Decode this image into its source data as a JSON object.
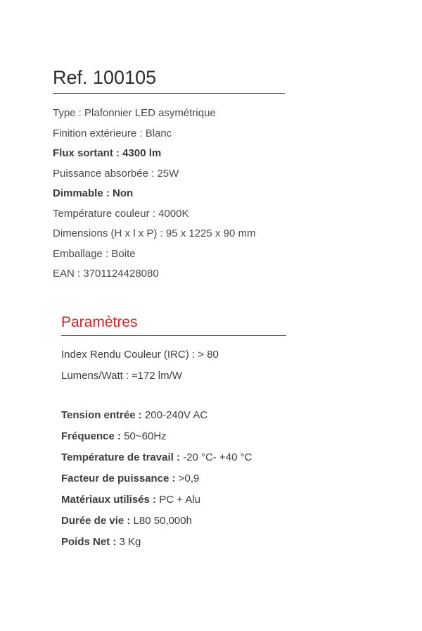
{
  "header": {
    "ref_label": "Ref. 100105"
  },
  "specs": [
    {
      "label": "Type : ",
      "value": "Plafonnier LED asymétrique",
      "bold": false
    },
    {
      "label": "Finition extérieure : ",
      "value": "Blanc",
      "bold": false
    },
    {
      "label": "Flux sortant : ",
      "value": "4300 lm",
      "bold": true
    },
    {
      "label": "Puissance absorbée : ",
      "value": "25W",
      "bold": false
    },
    {
      "label": "Dimmable : ",
      "value": "Non",
      "bold": true
    },
    {
      "label": "Température couleur : ",
      "value": "4000K",
      "bold": false
    },
    {
      "label": "Dimensions (H x l x P) : ",
      "value": "95 x 1225 x 90 mm",
      "bold": false
    },
    {
      "label": "Emballage : ",
      "value": "Boite",
      "bold": false
    },
    {
      "label": "EAN : ",
      "value": "3701124428080",
      "bold": false
    }
  ],
  "params_title": "Paramètres",
  "params_top": [
    {
      "label": "Index Rendu Couleur (IRC) : ",
      "value": "> 80"
    },
    {
      "label": "Lumens/Watt : ",
      "value": "≈172 lm/W"
    }
  ],
  "params_bottom": [
    {
      "label": "Tension entrée : ",
      "value": "200-240V AC"
    },
    {
      "label": "Fréquence : ",
      "value": "50~60Hz"
    },
    {
      "label": "Température de travail : ",
      "value": "-20 °C- +40 °C"
    },
    {
      "label": "Facteur de puissance : ",
      "value": ">0,9"
    },
    {
      "label": "Matériaux utilisés : ",
      "value": "PC + Alu"
    },
    {
      "label": "Durée de vie : ",
      "value": "L80 50,000h"
    },
    {
      "label": "Poids Net : ",
      "value": "3 Kg"
    }
  ],
  "colors": {
    "text": "#3a3a3a",
    "accent": "#d22222",
    "rule": "#444444",
    "background": "#ffffff"
  },
  "typography": {
    "title_fontsize": 27,
    "section_fontsize": 21,
    "body_fontsize": 15
  }
}
